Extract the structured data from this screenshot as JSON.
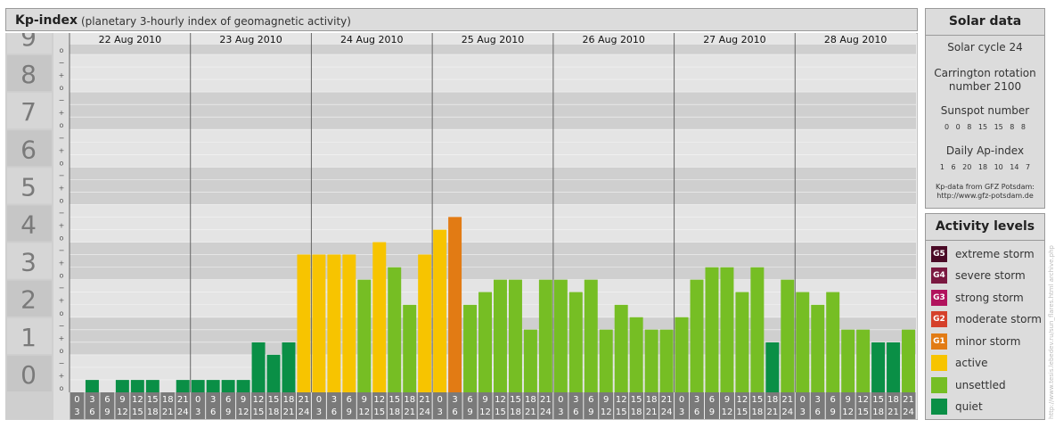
{
  "header": {
    "title": "Kp-index",
    "subtitle": "(planetary 3-hourly index of geomagnetic activity)"
  },
  "chart_data": {
    "type": "bar",
    "days": [
      "22 Aug 2010",
      "23 Aug 2010",
      "24 Aug 2010",
      "25 Aug 2010",
      "26 Aug 2010",
      "27 Aug 2010",
      "28 Aug 2010"
    ],
    "interval_labels": [
      [
        "0",
        "3"
      ],
      [
        "3",
        "6"
      ],
      [
        "6",
        "9"
      ],
      [
        "9",
        "12"
      ],
      [
        "12",
        "15"
      ],
      [
        "15",
        "18"
      ],
      [
        "18",
        "21"
      ],
      [
        "21",
        "24"
      ]
    ],
    "y_tick_labels": [
      "0",
      "1",
      "2",
      "3",
      "4",
      "5",
      "6",
      "7",
      "8",
      "9"
    ],
    "sub_tick_labels": [
      "o",
      "+",
      "−"
    ],
    "ylim": [
      0,
      9.33
    ],
    "values": [
      0,
      0.33,
      0,
      0.33,
      0.33,
      0.33,
      0,
      0.33,
      0.33,
      0.33,
      0.33,
      0.33,
      1.33,
      1,
      1.33,
      3.67,
      3.67,
      3.67,
      3.67,
      3,
      4,
      3.33,
      2.33,
      3.67,
      4.33,
      4.67,
      2.33,
      2.67,
      3,
      3,
      1.67,
      3,
      3,
      2.67,
      3,
      1.67,
      2.33,
      2,
      1.67,
      1.67,
      2,
      3,
      3.33,
      3.33,
      2.67,
      3.33,
      1.33,
      3,
      2.67,
      2.33,
      2.67,
      1.67,
      1.67,
      1.33,
      1.33,
      1.67
    ],
    "level_colors": {
      "quiet": "#0a8f46",
      "unsettled": "#76be24",
      "active": "#f7c400",
      "G1": "#e27b14",
      "G2": "#d5402a",
      "G3": "#b1125d",
      "G4": "#7a1840",
      "G5": "#4a0a26"
    }
  },
  "solar_data": {
    "title": "Solar data",
    "solar_cycle": "Solar cycle 24",
    "carrington_1": "Carrington rotation",
    "carrington_2": "number 2100",
    "sunspot_label": "Sunspot number",
    "sunspot_values": "0 0 8 15 15 8 8",
    "ap_label": "Daily Ap-index",
    "ap_values": "1 6 20 18 10 14 7",
    "credit_1": "Kp-data from GFZ Potsdam:",
    "credit_2": "http://www.gfz-potsdam.de"
  },
  "activity_levels": {
    "title": "Activity levels",
    "items": [
      {
        "badge": "G5",
        "label": "extreme storm",
        "color": "#4a0a26"
      },
      {
        "badge": "G4",
        "label": "severe storm",
        "color": "#7a1840"
      },
      {
        "badge": "G3",
        "label": "strong storm",
        "color": "#b1125d"
      },
      {
        "badge": "G2",
        "label": "moderate storm",
        "color": "#d5402a"
      },
      {
        "badge": "G1",
        "label": "minor storm",
        "color": "#e27b14"
      },
      {
        "badge": "",
        "label": "active",
        "color": "#f7c400"
      },
      {
        "badge": "",
        "label": "unsettled",
        "color": "#76be24"
      },
      {
        "badge": "",
        "label": "quiet",
        "color": "#0a8f46"
      }
    ]
  },
  "watermark": "http://www.tesis.lebedev.ru/sun_flares.html  archive.php"
}
